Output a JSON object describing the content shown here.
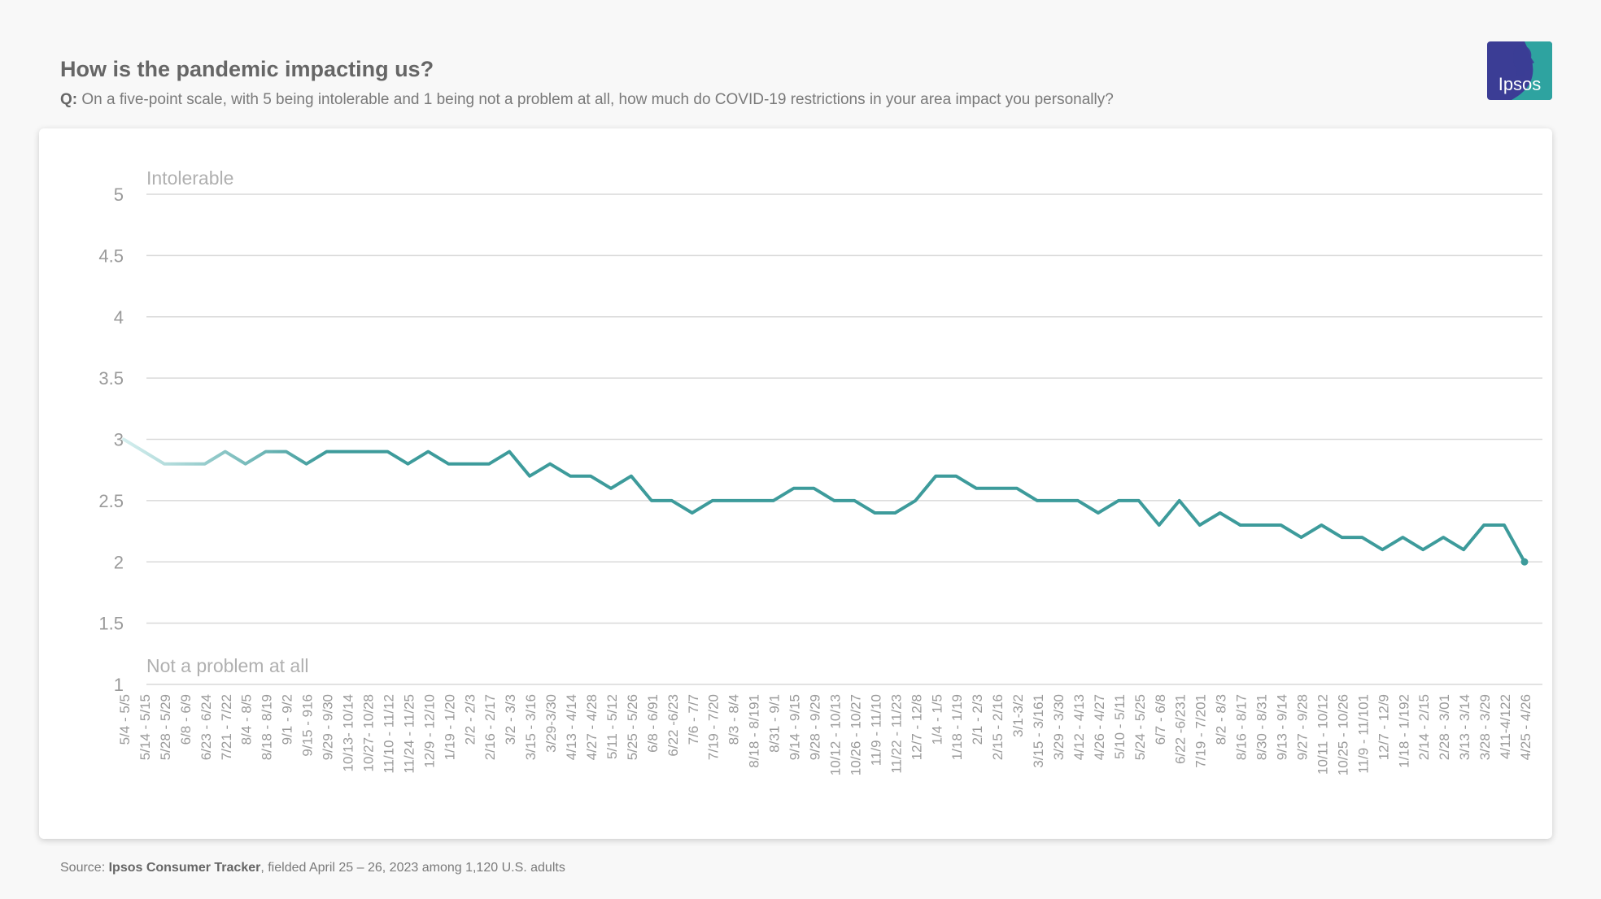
{
  "header": {
    "title": "How is the pandemic impacting us?",
    "question_prefix": "Q:",
    "question_text": "On a five-point scale, with 5 being intolerable and 1 being not a problem at all, how much do COVID-19 restrictions in your area impact you personally?"
  },
  "logo": {
    "text": "Ipsos",
    "colors": {
      "blue": "#3b3d95",
      "teal": "#2ea3a0"
    },
    "icon": "ipsos-head-logo"
  },
  "footer": {
    "source_prefix": "Source:",
    "source_name": "Ipsos Consumer Tracker",
    "source_rest": ", fielded April 25 – 26, 2023 among 1,120 U.S. adults"
  },
  "colors": {
    "line": "#3d9b9b",
    "line_fade_start": "#d4eeee",
    "grid": "#d9d9d9",
    "tick_text": "#9a9a9a"
  },
  "chart_data": {
    "type": "line",
    "ylim": [
      1,
      5
    ],
    "yticks": [
      "1",
      "1.5",
      "2",
      "2.5",
      "3",
      "3.5",
      "4",
      "4.5",
      "5"
    ],
    "annotations": {
      "top": "Intolerable",
      "bottom": "Not a problem at all"
    },
    "grid": true,
    "categories": [
      "5/4 - 5/5",
      "5/14 - 5/15",
      "5/28 - 5/29",
      "6/8 - 6/9",
      "6/23 - 6/24",
      "7/21 - 7/22",
      "8/4 - 8/5",
      "8/18 - 8/19",
      "9/1 - 9/2",
      "9/15 - 916",
      "9/29 - 9/30",
      "10/13- 10/14",
      "10/27- 10/28",
      "11/10 - 11/12",
      "11/24 - 11/25",
      "12/9 - 12/10",
      "1/19 - 1/20",
      "2/2 - 2/3",
      "2/16 - 2/17",
      "3/2 - 3/3",
      "3/15 - 3/16",
      "3/29-3/30",
      "4/13 - 4/14",
      "4/27 - 4/28",
      "5/11 - 5/12",
      "5/25 - 5/26",
      "6/8 - 6/91",
      "6/22 -6/23",
      "7/6 - 7/7",
      "7/19 - 7/20",
      "8/3 - 8/4",
      "8/18 - 8/191",
      "8/31 - 9/1",
      "9/14 - 9/15",
      "9/28 - 9/29",
      "10/12 - 10/13",
      "10/26 - 10/27",
      "11/9 - 11/10",
      "11/22 - 11/23",
      "12/7 - 12/8",
      "1/4 - 1/5",
      "1/18 - 1/19",
      "2/1 - 2/3",
      "2/15 - 2/16",
      "3/1-3/2",
      "3/15 - 3/161",
      "3/29 - 3/30",
      "4/12 - 4/13",
      "4/26 - 4/27",
      "5/10 - 5/11",
      "5/24 - 5/25",
      "6/7 - 6/8",
      "6/22 -6/231",
      "7/19 - 7/201",
      "8/2 - 8/3",
      "8/16 - 8/17",
      "8/30 - 8/31",
      "9/13 - 9/14",
      "9/27 - 9/28",
      "10/11 - 10/12",
      "10/25 - 10/26",
      "11/9 - 11/101",
      "12/7 - 12/9",
      "1/18 - 1/192",
      "2/14 - 2/15",
      "2/28 - 3/01",
      "3/13 - 3/14",
      "3/28 - 3/29",
      "4/11-4/122",
      "4/25 - 4/26"
    ],
    "series": [
      {
        "values": [
          3.0,
          2.9,
          2.8,
          2.8,
          2.8,
          2.9,
          2.8,
          2.9,
          2.9,
          2.8,
          2.9,
          2.9,
          2.9,
          2.9,
          2.8,
          2.9,
          2.8,
          2.8,
          2.8,
          2.9,
          2.7,
          2.8,
          2.7,
          2.7,
          2.6,
          2.7,
          2.5,
          2.5,
          2.4,
          2.5,
          2.5,
          2.5,
          2.5,
          2.6,
          2.6,
          2.5,
          2.5,
          2.4,
          2.4,
          2.5,
          2.7,
          2.7,
          2.6,
          2.6,
          2.6,
          2.5,
          2.5,
          2.5,
          2.4,
          2.5,
          2.5,
          2.3,
          2.5,
          2.3,
          2.4,
          2.3,
          2.3,
          2.3,
          2.2,
          2.3,
          2.2,
          2.2,
          2.1,
          2.2,
          2.1,
          2.2,
          2.1,
          2.3,
          2.3,
          2.0
        ]
      }
    ]
  }
}
